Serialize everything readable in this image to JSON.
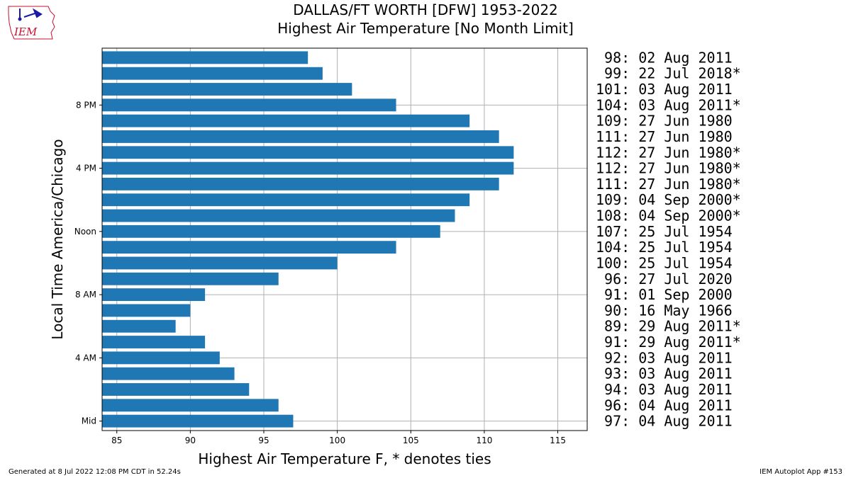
{
  "header": {
    "title_line1": "DALLAS/FT WORTH [DFW] 1953-2022",
    "title_line2": "Highest Air Temperature [No Month Limit]"
  },
  "logo": {
    "text": "IEM"
  },
  "footer": {
    "left": "Generated at 8 Jul 2022 12:08 PM CDT in 52.24s",
    "right": "IEM Autoplot App #153"
  },
  "chart_data": {
    "type": "bar",
    "orientation": "horizontal",
    "xlabel": "Highest Air Temperature F, * denotes ties",
    "ylabel": "Local Time America/Chicago",
    "xlim": [
      84,
      117
    ],
    "xticks": [
      85,
      90,
      95,
      100,
      105,
      110,
      115
    ],
    "yticks": [
      {
        "hour": 0,
        "label": "Mid"
      },
      {
        "hour": 4,
        "label": "4 AM"
      },
      {
        "hour": 8,
        "label": "8 AM"
      },
      {
        "hour": 12,
        "label": "Noon"
      },
      {
        "hour": 16,
        "label": "4 PM"
      },
      {
        "hour": 20,
        "label": "8 PM"
      }
    ],
    "grid": true,
    "bar_color": "#1f77b4",
    "hours": [
      0,
      1,
      2,
      3,
      4,
      5,
      6,
      7,
      8,
      9,
      10,
      11,
      12,
      13,
      14,
      15,
      16,
      17,
      18,
      19,
      20,
      21,
      22,
      23
    ],
    "values": [
      97,
      96,
      94,
      93,
      92,
      91,
      89,
      90,
      91,
      96,
      100,
      104,
      107,
      108,
      109,
      111,
      112,
      112,
      111,
      109,
      104,
      101,
      99,
      98
    ],
    "annotations": [
      " 97: 04 Aug 2011",
      " 96: 04 Aug 2011",
      " 94: 03 Aug 2011",
      " 93: 03 Aug 2011",
      " 92: 03 Aug 2011",
      " 91: 29 Aug 2011*",
      " 89: 29 Aug 2011*",
      " 90: 16 May 1966",
      " 91: 01 Sep 2000",
      " 96: 27 Jul 2020",
      "100: 25 Jul 1954",
      "104: 25 Jul 1954",
      "107: 25 Jul 1954",
      "108: 04 Sep 2000*",
      "109: 04 Sep 2000*",
      "111: 27 Jun 1980*",
      "112: 27 Jun 1980*",
      "112: 27 Jun 1980*",
      "111: 27 Jun 1980",
      "109: 27 Jun 1980",
      "104: 03 Aug 2011*",
      "101: 03 Aug 2011",
      " 99: 22 Jul 2018*",
      " 98: 02 Aug 2011"
    ]
  }
}
